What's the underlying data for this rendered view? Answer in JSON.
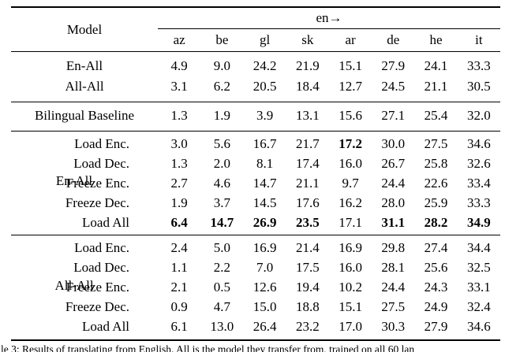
{
  "page": {
    "background": "#ffffff",
    "text_color": "#000000",
    "rule_color": "#000000"
  },
  "table": {
    "corner_label": "Model",
    "span_header": "en→",
    "columns": [
      "az",
      "be",
      "gl",
      "sk",
      "ar",
      "de",
      "he",
      "it"
    ],
    "sections": [
      {
        "name": "multilingual-models",
        "rows": [
          {
            "label": "En-All",
            "values": [
              "4.9",
              "9.0",
              "24.2",
              "21.9",
              "15.1",
              "27.9",
              "24.1",
              "33.3"
            ],
            "bold": []
          },
          {
            "label": "All-All",
            "values": [
              "3.1",
              "6.2",
              "20.5",
              "18.4",
              "12.7",
              "24.5",
              "21.1",
              "30.5"
            ],
            "bold": []
          }
        ]
      },
      {
        "name": "bilingual-baseline",
        "rows": [
          {
            "label": "Bilingual Baseline",
            "values": [
              "1.3",
              "1.9",
              "3.9",
              "13.1",
              "15.6",
              "27.1",
              "25.4",
              "32.0"
            ],
            "bold": []
          }
        ]
      },
      {
        "name": "en-all-transfer",
        "group_label": "En-All",
        "rows": [
          {
            "label": "Load Enc.",
            "values": [
              "3.0",
              "5.6",
              "16.7",
              "21.7",
              "17.2",
              "30.0",
              "27.5",
              "34.6"
            ],
            "bold": [
              4
            ]
          },
          {
            "label": "Load Dec.",
            "values": [
              "1.3",
              "2.0",
              "8.1",
              "17.4",
              "16.0",
              "26.7",
              "25.8",
              "32.6"
            ],
            "bold": []
          },
          {
            "label": "Freeze Enc.",
            "values": [
              "2.7",
              "4.6",
              "14.7",
              "21.1",
              "9.7",
              "24.4",
              "22.6",
              "33.4"
            ],
            "bold": []
          },
          {
            "label": "Freeze Dec.",
            "values": [
              "1.9",
              "3.7",
              "14.5",
              "17.6",
              "16.2",
              "28.0",
              "25.9",
              "33.3"
            ],
            "bold": []
          },
          {
            "label": "Load All",
            "values": [
              "6.4",
              "14.7",
              "26.9",
              "23.5",
              "17.1",
              "31.1",
              "28.2",
              "34.9"
            ],
            "bold": [
              0,
              1,
              2,
              3,
              5,
              6,
              7
            ]
          }
        ]
      },
      {
        "name": "all-all-transfer",
        "group_label": "All-All",
        "rows": [
          {
            "label": "Load Enc.",
            "values": [
              "2.4",
              "5.0",
              "16.9",
              "21.4",
              "16.9",
              "29.8",
              "27.4",
              "34.4"
            ],
            "bold": []
          },
          {
            "label": "Load Dec.",
            "values": [
              "1.1",
              "2.2",
              "7.0",
              "17.5",
              "16.0",
              "28.1",
              "25.6",
              "32.5"
            ],
            "bold": []
          },
          {
            "label": "Freeze Enc.",
            "values": [
              "2.1",
              "0.5",
              "12.6",
              "19.4",
              "10.2",
              "24.4",
              "24.3",
              "33.1"
            ],
            "bold": []
          },
          {
            "label": "Freeze Dec.",
            "values": [
              "0.9",
              "4.7",
              "15.0",
              "18.8",
              "15.1",
              "27.5",
              "24.9",
              "32.4"
            ],
            "bold": []
          },
          {
            "label": "Load All",
            "values": [
              "6.1",
              "13.0",
              "26.4",
              "23.2",
              "17.0",
              "30.3",
              "27.9",
              "34.6"
            ],
            "bold": []
          }
        ]
      }
    ]
  },
  "caption_fragment": "le 3: Results of translating from English. All is the model they transfer from, trained on all 60 lan"
}
